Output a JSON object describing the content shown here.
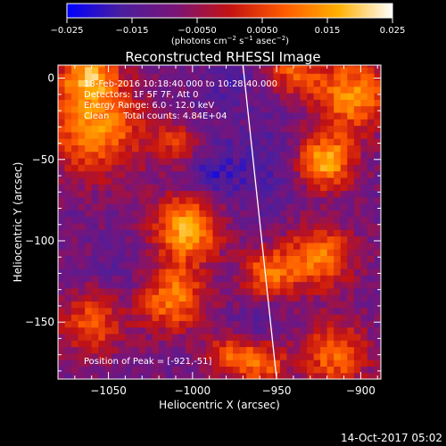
{
  "chart_data": {
    "type": "heatmap",
    "title": "Reconstructed RHESSI Image",
    "xlabel": "Heliocentric X (arcsec)",
    "ylabel": "Heliocentric Y (arcsec)",
    "xlim": [
      -1080,
      -888
    ],
    "ylim": [
      -185,
      8
    ],
    "x_ticks": [
      -1050,
      -1000,
      -950,
      -900
    ],
    "x_tick_labels": [
      "−1050",
      "−1000",
      "−950",
      "−900"
    ],
    "y_ticks": [
      0,
      -50,
      -100,
      -150
    ],
    "y_tick_labels": [
      "0",
      "−50",
      "−100",
      "−150"
    ],
    "colorbar": {
      "min": -0.025,
      "max": 0.025,
      "ticks": [
        -0.025,
        -0.015,
        -0.005,
        0.005,
        0.015,
        0.025
      ],
      "tick_labels": [
        "−0.025",
        "−0.015",
        "−0.0050",
        "0.0050",
        "0.015",
        "0.025"
      ],
      "unit_main": "(photons cm",
      "unit_exp1": "−2",
      "unit_mid": " s",
      "unit_exp2": "−1",
      "unit_end": " asec",
      "unit_exp3": "−2",
      "unit_close": ")",
      "colors": [
        "#0000ff",
        "#4a1e9e",
        "#7a1478",
        "#c31212",
        "#ff5a00",
        "#ffb000",
        "#ffffff"
      ]
    },
    "annotations": [
      "18-Feb-2016 10:18:40.000 to 10:28:40.000",
      "Detectors: 1F 5F 7F, Att 0",
      "Energy Range: 6.0 - 12.0 keV",
      "Clean     Total counts: 4.84E+04"
    ],
    "peak_label": "Position of Peak = [-921,-51]",
    "peak": [
      -921,
      -51
    ],
    "sources": [
      {
        "x": -1003,
        "y": -92,
        "amp": 1.0,
        "s": 14
      },
      {
        "x": -1058,
        "y": -30,
        "amp": 0.85,
        "s": 20
      },
      {
        "x": -1062,
        "y": 3,
        "amp": 0.8,
        "s": 12
      },
      {
        "x": -1012,
        "y": -135,
        "amp": 0.8,
        "s": 14
      },
      {
        "x": -1060,
        "y": -150,
        "amp": 0.6,
        "s": 14
      },
      {
        "x": -1010,
        "y": -40,
        "amp": 0.45,
        "s": 10
      },
      {
        "x": -905,
        "y": -10,
        "amp": 0.85,
        "s": 16
      },
      {
        "x": -921,
        "y": -51,
        "amp": 1.0,
        "s": 12
      },
      {
        "x": -925,
        "y": -110,
        "amp": 0.8,
        "s": 14
      },
      {
        "x": -955,
        "y": -120,
        "amp": 0.7,
        "s": 11
      },
      {
        "x": -915,
        "y": -170,
        "amp": 0.7,
        "s": 14
      },
      {
        "x": -960,
        "y": -175,
        "amp": 0.7,
        "s": 11
      },
      {
        "x": -940,
        "y": 5,
        "amp": 0.6,
        "s": 11
      },
      {
        "x": -980,
        "y": -170,
        "amp": 0.5,
        "s": 9
      }
    ],
    "negative_sources": [
      {
        "x": -990,
        "y": -60,
        "amp": 0.55,
        "s": 10
      },
      {
        "x": -960,
        "y": -55,
        "amp": 0.45,
        "s": 22
      },
      {
        "x": -1040,
        "y": -120,
        "amp": 0.35,
        "s": 12
      },
      {
        "x": -980,
        "y": 0,
        "amp": 0.35,
        "s": 14
      },
      {
        "x": -960,
        "y": -150,
        "amp": 0.5,
        "s": 9
      }
    ],
    "limb": {
      "x0": -970,
      "y0": 8,
      "x1": -950,
      "y1": -185
    }
  },
  "timestamp": "14-Oct-2017 05:02"
}
